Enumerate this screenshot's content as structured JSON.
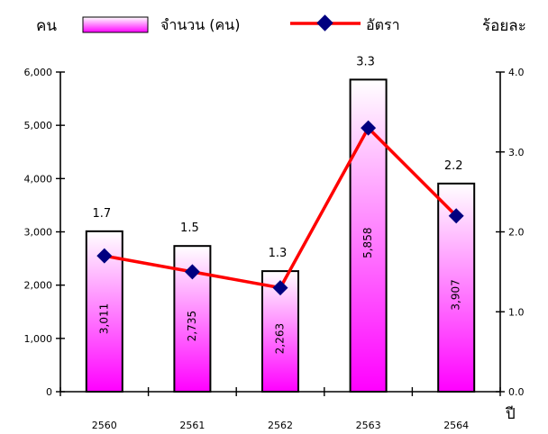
{
  "chart_data": {
    "type": "bar",
    "categories": [
      "2560",
      "2561",
      "2562",
      "2563",
      "2564"
    ],
    "series": [
      {
        "name": "จำนวน (คน)",
        "type": "bar",
        "axis": "left",
        "values": [
          3011,
          2735,
          2263,
          5858,
          3907
        ]
      },
      {
        "name": "อัตรา",
        "type": "line",
        "axis": "right",
        "values": [
          1.7,
          1.5,
          1.3,
          3.3,
          2.2
        ]
      }
    ],
    "bar_labels": [
      "3,011",
      "2,735",
      "2,263",
      "5,858",
      "3,907"
    ],
    "rate_labels": [
      "1.7",
      "1.5",
      "1.3",
      "3.3",
      "2.2"
    ],
    "y_left": {
      "label": "คน",
      "min": 0,
      "max": 6000,
      "ticks": [
        "0",
        "1,000",
        "2,000",
        "3,000",
        "4,000",
        "5,000",
        "6,000"
      ]
    },
    "y_right": {
      "label": "ร้อยละ",
      "min": 0,
      "max": 4,
      "ticks": [
        "0.0",
        "1.0",
        "2.0",
        "3.0",
        "4.0"
      ]
    },
    "xlabel": "ปี",
    "legend_position": "top",
    "colors": {
      "bar_top": "#ffffff",
      "bar_bottom": "#ff00ff",
      "bar_stroke": "#000000",
      "line": "#ff0000",
      "marker": "#000080"
    }
  }
}
